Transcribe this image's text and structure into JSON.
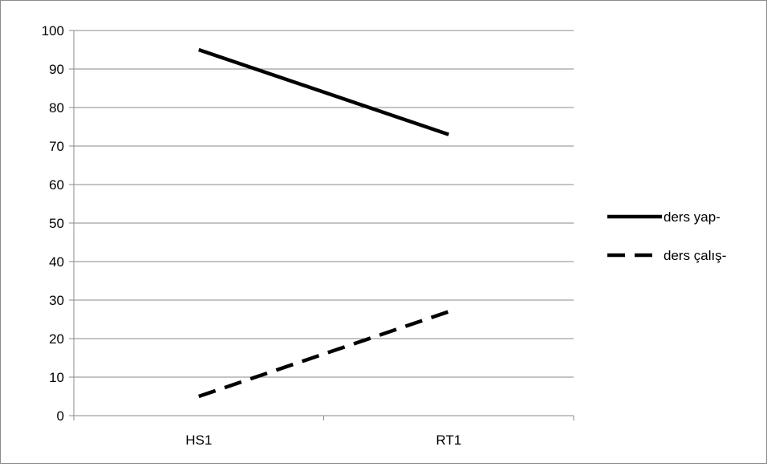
{
  "chart_data": {
    "type": "line",
    "categories": [
      "HS1",
      "RT1"
    ],
    "series": [
      {
        "name": "ders yap-",
        "values": [
          95,
          73
        ],
        "style": "solid",
        "color": "#000000"
      },
      {
        "name": "ders çalış-",
        "values": [
          5,
          27
        ],
        "style": "dashed",
        "color": "#000000"
      }
    ],
    "title": "",
    "xlabel": "",
    "ylabel": "",
    "ylim": [
      0,
      100
    ],
    "yticks": [
      "0",
      "10",
      "20",
      "30",
      "40",
      "50",
      "60",
      "70",
      "80",
      "90",
      "100"
    ],
    "grid": "horizontal",
    "legend_position": "right"
  }
}
